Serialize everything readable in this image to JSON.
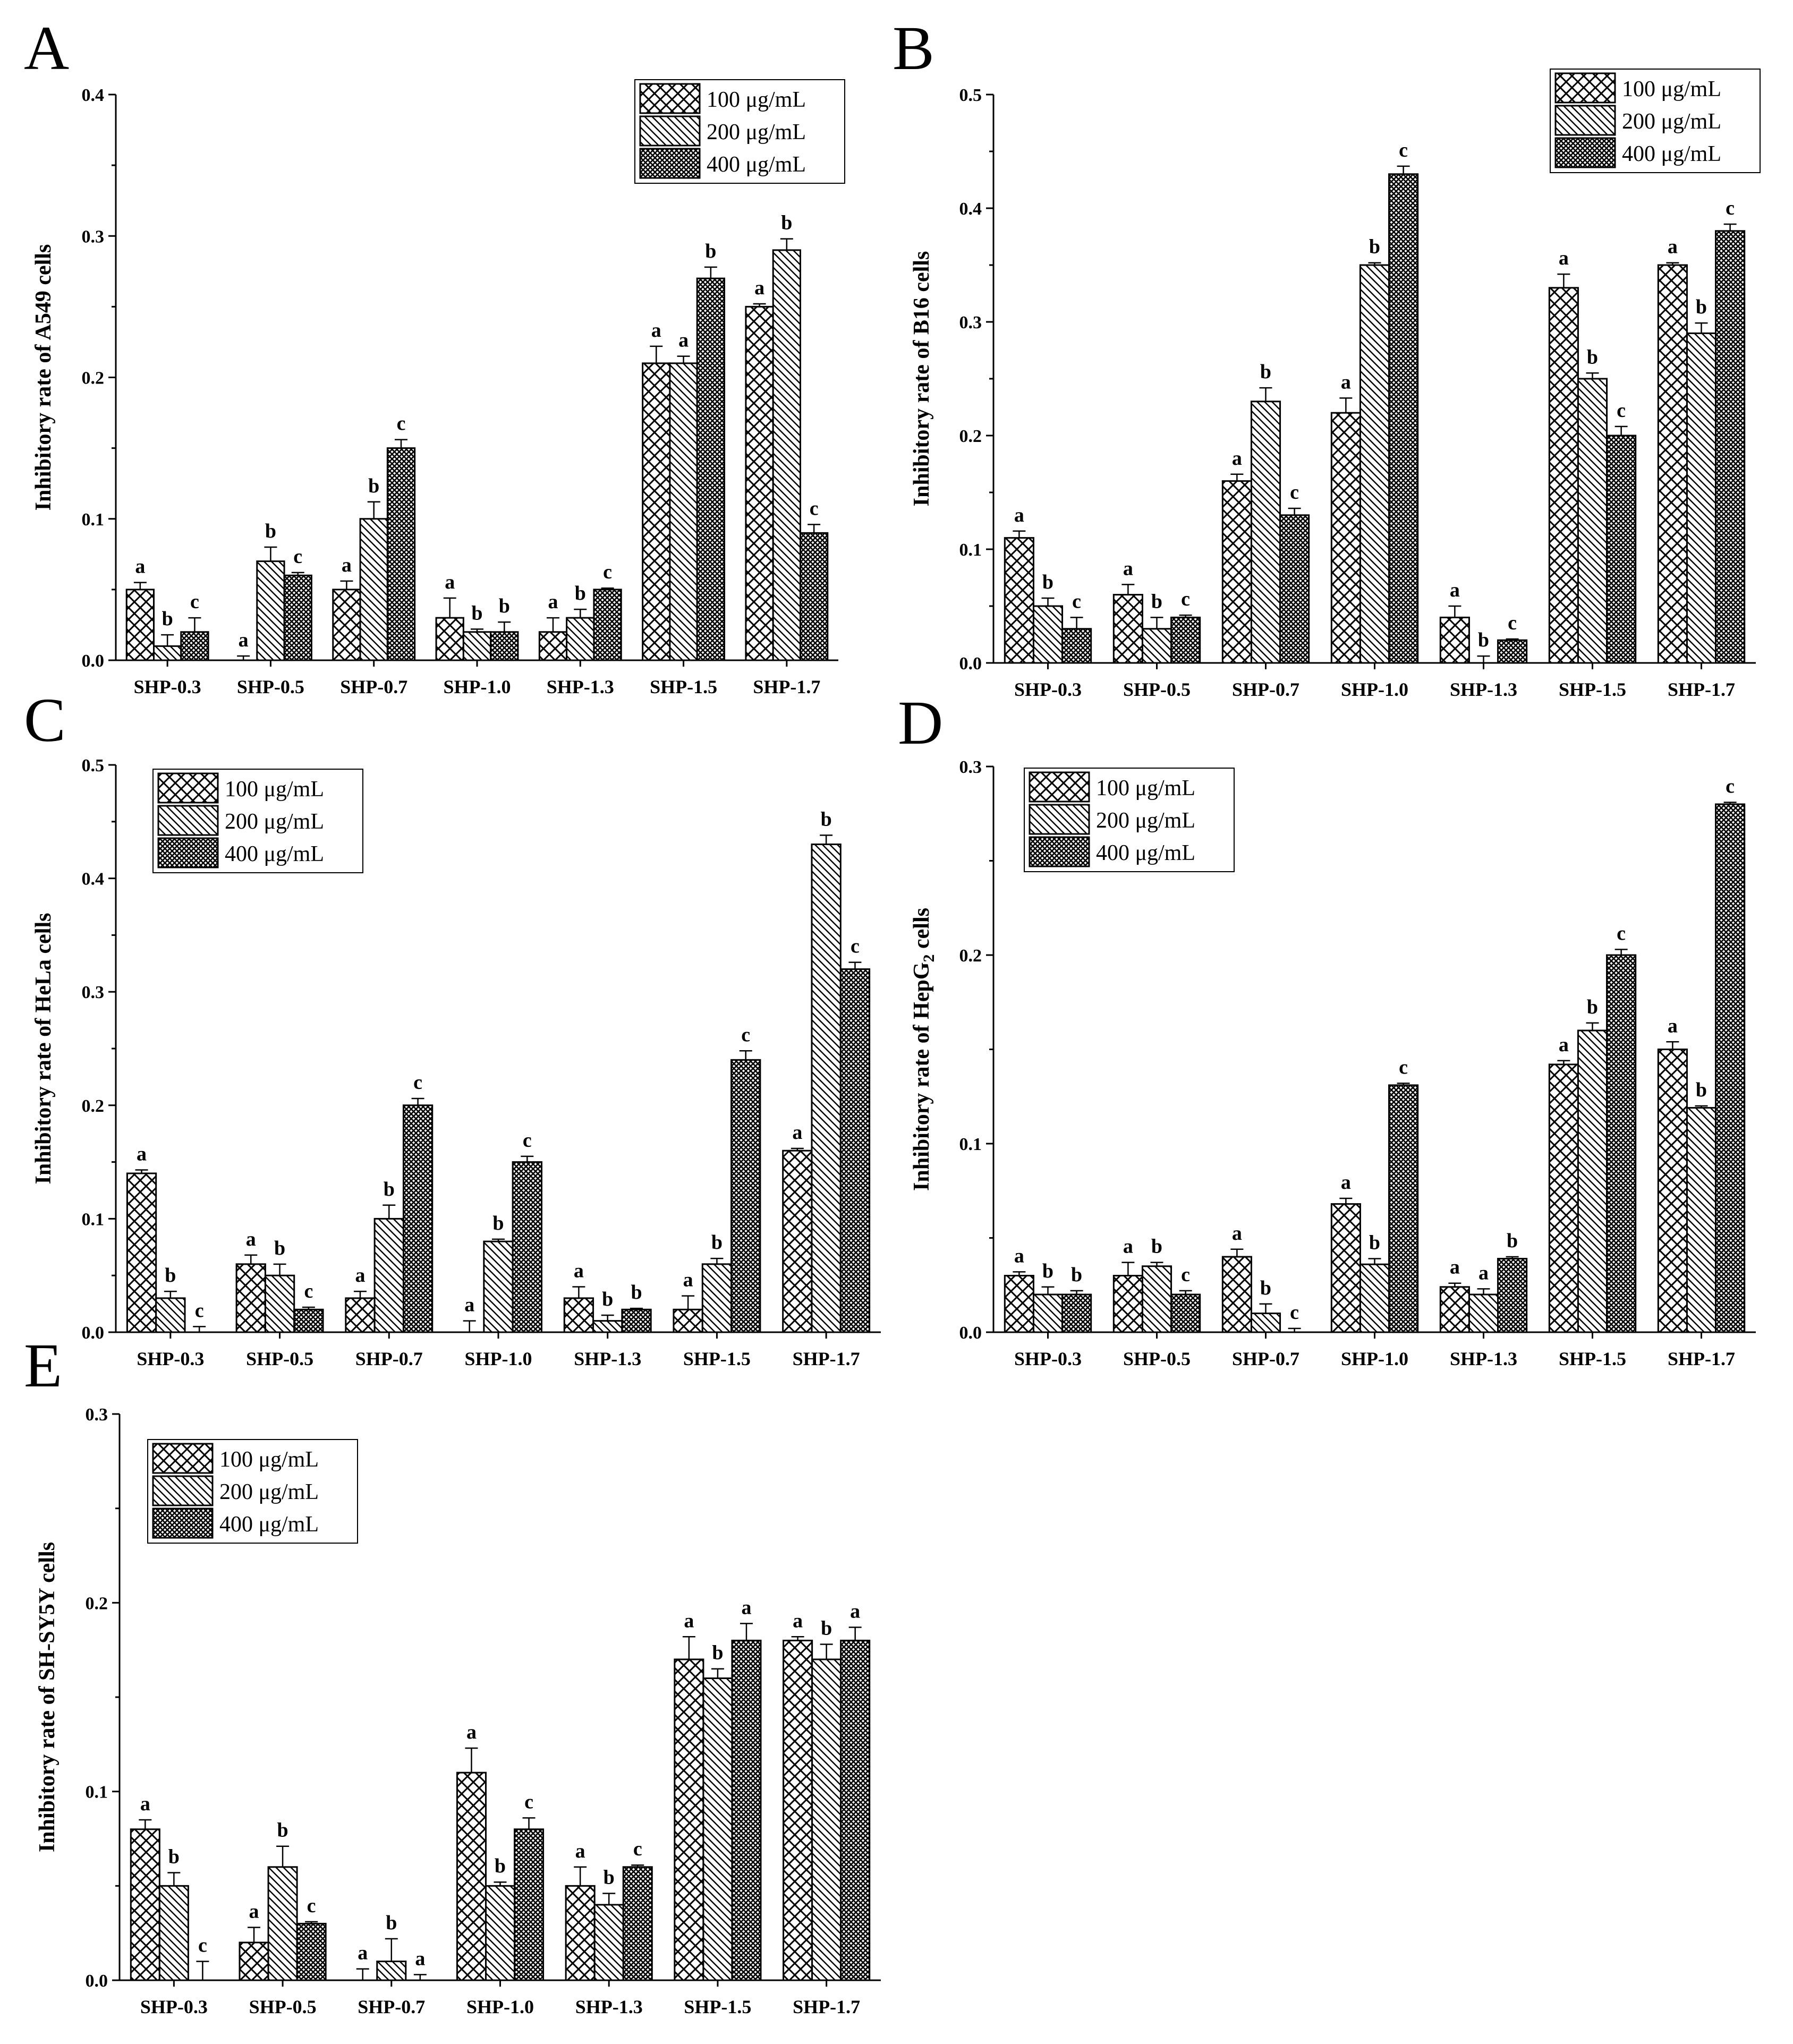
{
  "figure": {
    "legend_entries": [
      "100 μg/mL",
      "200 μg/mL",
      "400 μg/mL"
    ],
    "colors": {
      "axis": "#000000",
      "bar_fill": "#ffffff",
      "pattern": "#000000"
    },
    "pattern_names": [
      "crosshatch-pattern",
      "diagonal-pattern",
      "dense-grid-pattern"
    ]
  },
  "chart_data": [
    {
      "panel": "A",
      "type": "bar",
      "ylabel": "Inhibitory rate of A549 cells",
      "ylim": [
        0,
        0.4
      ],
      "yticks": [
        "0.0",
        "0.1",
        "0.2",
        "0.3",
        "0.4"
      ],
      "legend_position": "top-right",
      "categories": [
        "SHP-0.3",
        "SHP-0.5",
        "SHP-0.7",
        "SHP-1.0",
        "SHP-1.3",
        "SHP-1.5",
        "SHP-1.7"
      ],
      "series": [
        {
          "name": "100 μg/mL",
          "values": [
            0.05,
            0.0,
            0.05,
            0.03,
            0.02,
            0.21,
            0.25
          ],
          "errors": [
            0.005,
            0.003,
            0.006,
            0.014,
            0.01,
            0.012,
            0.002
          ],
          "labels": [
            "a",
            "a",
            "a",
            "a",
            "a",
            "a",
            "a"
          ]
        },
        {
          "name": "200 μg/mL",
          "values": [
            0.01,
            0.07,
            0.1,
            0.02,
            0.03,
            0.21,
            0.29
          ],
          "errors": [
            0.008,
            0.01,
            0.012,
            0.002,
            0.006,
            0.005,
            0.008
          ],
          "labels": [
            "b",
            "b",
            "b",
            "b",
            "b",
            "a",
            "b"
          ]
        },
        {
          "name": "400 μg/mL",
          "values": [
            0.02,
            0.06,
            0.15,
            0.02,
            0.05,
            0.27,
            0.09
          ],
          "errors": [
            0.01,
            0.002,
            0.006,
            0.007,
            0.001,
            0.008,
            0.006
          ],
          "labels": [
            "c",
            "c",
            "c",
            "b",
            "c",
            "b",
            "c"
          ]
        }
      ]
    },
    {
      "panel": "B",
      "type": "bar",
      "ylabel": "Inhibitory rate of B16 cells",
      "ylim": [
        0,
        0.5
      ],
      "yticks": [
        "0.0",
        "0.1",
        "0.2",
        "0.3",
        "0.4",
        "0.5"
      ],
      "legend_position": "top-right",
      "categories": [
        "SHP-0.3",
        "SHP-0.5",
        "SHP-0.7",
        "SHP-1.0",
        "SHP-1.3",
        "SHP-1.5",
        "SHP-1.7"
      ],
      "series": [
        {
          "name": "100 μg/mL",
          "values": [
            0.11,
            0.06,
            0.16,
            0.22,
            0.04,
            0.33,
            0.35
          ],
          "errors": [
            0.006,
            0.009,
            0.006,
            0.013,
            0.01,
            0.012,
            0.002
          ],
          "labels": [
            "a",
            "a",
            "a",
            "a",
            "a",
            "a",
            "a"
          ]
        },
        {
          "name": "200 μg/mL",
          "values": [
            0.05,
            0.03,
            0.23,
            0.35,
            0.0,
            0.25,
            0.29
          ],
          "errors": [
            0.007,
            0.01,
            0.012,
            0.002,
            0.006,
            0.005,
            0.009
          ],
          "labels": [
            "b",
            "b",
            "b",
            "b",
            "b",
            "b",
            "b"
          ]
        },
        {
          "name": "400 μg/mL",
          "values": [
            0.03,
            0.04,
            0.13,
            0.43,
            0.02,
            0.2,
            0.38
          ],
          "errors": [
            0.01,
            0.002,
            0.006,
            0.007,
            0.001,
            0.008,
            0.006
          ],
          "labels": [
            "c",
            "c",
            "c",
            "c",
            "c",
            "c",
            "c"
          ]
        }
      ]
    },
    {
      "panel": "C",
      "type": "bar",
      "ylabel": "Inhibitory rate of HeLa cells",
      "ylim": [
        0,
        0.5
      ],
      "yticks": [
        "0.0",
        "0.1",
        "0.2",
        "0.3",
        "0.4",
        "0.5"
      ],
      "legend_position": "top-left",
      "categories": [
        "SHP-0.3",
        "SHP-0.5",
        "SHP-0.7",
        "SHP-1.0",
        "SHP-1.3",
        "SHP-1.5",
        "SHP-1.7"
      ],
      "series": [
        {
          "name": "100 μg/mL",
          "values": [
            0.14,
            0.06,
            0.03,
            0.0,
            0.03,
            0.02,
            0.16
          ],
          "errors": [
            0.003,
            0.008,
            0.006,
            0.01,
            0.01,
            0.012,
            0.002
          ],
          "labels": [
            "a",
            "a",
            "a",
            "a",
            "a",
            "a",
            "a"
          ]
        },
        {
          "name": "200 μg/mL",
          "values": [
            0.03,
            0.05,
            0.1,
            0.08,
            0.01,
            0.06,
            0.43
          ],
          "errors": [
            0.006,
            0.01,
            0.012,
            0.002,
            0.005,
            0.005,
            0.008
          ],
          "labels": [
            "b",
            "b",
            "b",
            "b",
            "b",
            "b",
            "b"
          ]
        },
        {
          "name": "400 μg/mL",
          "values": [
            0.0,
            0.02,
            0.2,
            0.15,
            0.02,
            0.24,
            0.32
          ],
          "errors": [
            0.005,
            0.002,
            0.006,
            0.005,
            0.001,
            0.008,
            0.006
          ],
          "labels": [
            "c",
            "c",
            "c",
            "c",
            "b",
            "c",
            "c"
          ]
        }
      ]
    },
    {
      "panel": "D",
      "type": "bar",
      "ylabel": "Inhibitory rate of HepG",
      "ylabel_subscript": "2",
      "ylabel_suffix": " cells",
      "ylim": [
        0,
        0.3
      ],
      "yticks": [
        "0.0",
        "0.1",
        "0.2",
        "0.3"
      ],
      "legend_position": "top-left",
      "categories": [
        "SHP-0.3",
        "SHP-0.5",
        "SHP-0.7",
        "SHP-1.0",
        "SHP-1.3",
        "SHP-1.5",
        "SHP-1.7"
      ],
      "series": [
        {
          "name": "100 μg/mL",
          "values": [
            0.03,
            0.03,
            0.04,
            0.068,
            0.024,
            0.142,
            0.15
          ],
          "errors": [
            0.002,
            0.007,
            0.004,
            0.003,
            0.002,
            0.002,
            0.004
          ],
          "labels": [
            "a",
            "a",
            "a",
            "a",
            "a",
            "a",
            "a"
          ]
        },
        {
          "name": "200 μg/mL",
          "values": [
            0.02,
            0.035,
            0.01,
            0.036,
            0.02,
            0.16,
            0.119
          ],
          "errors": [
            0.004,
            0.002,
            0.005,
            0.003,
            0.003,
            0.004,
            0.001
          ],
          "labels": [
            "b",
            "b",
            "b",
            "b",
            "a",
            "b",
            "b"
          ]
        },
        {
          "name": "400 μg/mL",
          "values": [
            0.02,
            0.02,
            0.0,
            0.131,
            0.039,
            0.2,
            0.28
          ],
          "errors": [
            0.002,
            0.002,
            0.002,
            0.001,
            0.001,
            0.003,
            0.001
          ],
          "labels": [
            "b",
            "c",
            "c",
            "c",
            "b",
            "c",
            "c"
          ]
        }
      ]
    },
    {
      "panel": "E",
      "type": "bar",
      "ylabel": "Inhibitory rate of SH-SY5Y cells",
      "ylim": [
        0,
        0.3
      ],
      "yticks": [
        "0.0",
        "0.1",
        "0.2",
        "0.3"
      ],
      "legend_position": "top-left",
      "categories": [
        "SHP-0.3",
        "SHP-0.5",
        "SHP-0.7",
        "SHP-1.0",
        "SHP-1.3",
        "SHP-1.5",
        "SHP-1.7"
      ],
      "series": [
        {
          "name": "100 μg/mL",
          "values": [
            0.08,
            0.02,
            0.0,
            0.11,
            0.05,
            0.17,
            0.18
          ],
          "errors": [
            0.005,
            0.008,
            0.006,
            0.013,
            0.01,
            0.012,
            0.002
          ],
          "labels": [
            "a",
            "a",
            "a",
            "a",
            "a",
            "a",
            "a"
          ]
        },
        {
          "name": "200 μg/mL",
          "values": [
            0.05,
            0.06,
            0.01,
            0.05,
            0.04,
            0.16,
            0.17
          ],
          "errors": [
            0.007,
            0.011,
            0.012,
            0.002,
            0.006,
            0.005,
            0.008
          ],
          "labels": [
            "b",
            "b",
            "b",
            "b",
            "b",
            "b",
            "b"
          ]
        },
        {
          "name": "400 μg/mL",
          "values": [
            0.0,
            0.03,
            0.0,
            0.08,
            0.06,
            0.18,
            0.18
          ],
          "errors": [
            0.01,
            0.001,
            0.003,
            0.006,
            0.001,
            0.009,
            0.007
          ],
          "labels": [
            "c",
            "c",
            "a",
            "c",
            "c",
            "a",
            "a"
          ]
        }
      ]
    }
  ]
}
